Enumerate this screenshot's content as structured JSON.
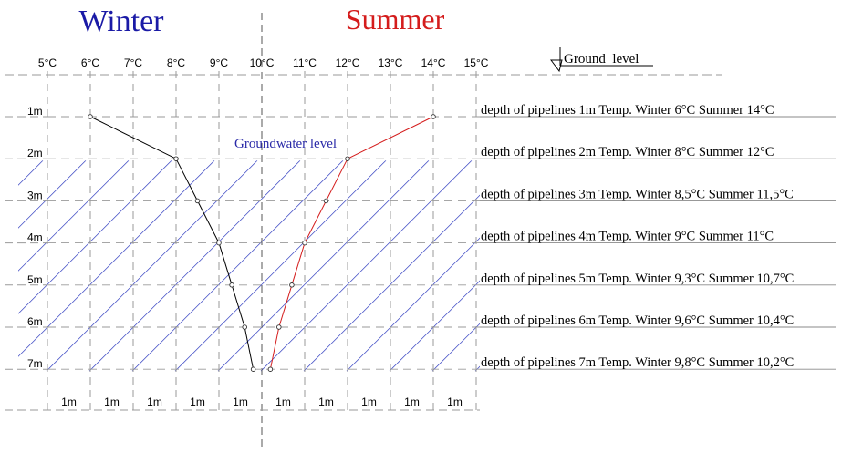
{
  "titles": {
    "winter": "Winter",
    "summer": "Summer"
  },
  "ground_level_label": "Ground  level",
  "groundwater_label": "Groundwater level",
  "temperature_ticks": [
    "5°C",
    "6°C",
    "7°C",
    "8°C",
    "9°C",
    "10°C",
    "11°C",
    "12°C",
    "13°C",
    "14°C",
    "15°C"
  ],
  "depth_ticks": [
    "1m",
    "2m",
    "3m",
    "4m",
    "5m",
    "6m",
    "7m"
  ],
  "bottom_spacing_labels": [
    "1m",
    "1m",
    "1m",
    "1m",
    "1m",
    "1m",
    "1m",
    "1m",
    "1m",
    "1m"
  ],
  "depth_annotations": [
    "depth of pipelines 1m Temp. Winter 6°C Summer 14°C",
    "depth of pipelines 2m Temp. Winter 8°C Summer 12°C",
    "depth of pipelines 3m Temp. Winter 8,5°C Summer 11,5°C",
    "depth of pipelines 4m Temp. Winter 9°C Summer 11°C",
    "depth of pipelines 5m Temp. Winter 9,3°C Summer 10,7°C",
    "depth of pipelines 6m Temp. Winter 9,6°C Summer 10,4°C",
    "depth of pipelines 7m Temp. Winter 9,8°C Summer 10,2°C"
  ],
  "colors": {
    "winter_title": "#1a1aa6",
    "summer_title": "#d41c1c",
    "winter_line": "#000000",
    "summer_line": "#d41c1c",
    "groundwater_hatch": "#4a55c8",
    "groundwater_text": "#2a2aa8",
    "grid": "#9a9a9a",
    "text": "#000000"
  },
  "chart_data": {
    "type": "line",
    "x_unit": "°C",
    "y_unit": "m",
    "xlim": [
      5,
      15
    ],
    "ylim": [
      1,
      7
    ],
    "y_inverted": true,
    "groundwater_depth": 2,
    "series": [
      {
        "name": "Winter",
        "points": [
          [
            6,
            1
          ],
          [
            8,
            2
          ],
          [
            8.5,
            3
          ],
          [
            9,
            4
          ],
          [
            9.3,
            5
          ],
          [
            9.6,
            6
          ],
          [
            9.8,
            7
          ]
        ]
      },
      {
        "name": "Summer",
        "points": [
          [
            14,
            1
          ],
          [
            12,
            2
          ],
          [
            11.5,
            3
          ],
          [
            11,
            4
          ],
          [
            10.7,
            5
          ],
          [
            10.4,
            6
          ],
          [
            10.2,
            7
          ]
        ]
      }
    ]
  }
}
